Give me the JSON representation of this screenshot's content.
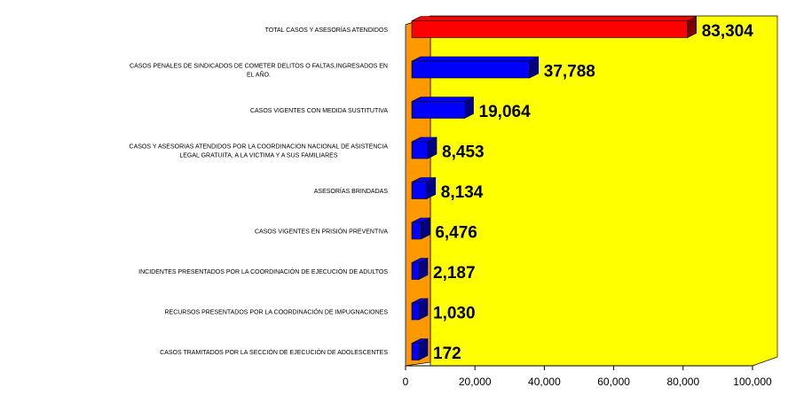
{
  "chart_data": {
    "type": "bar",
    "orientation": "horizontal",
    "three_d": true,
    "categories": [
      "TOTAL CASOS Y ASESORÍAS ATENDIDOS",
      "CASOS PENALES DE SINDICADOS DE COMETER DELITOS O FALTAS,INGRESADOS EN EL AÑO.",
      "CASOS VIGENTES CON MEDIDA SUSTITUTIVA",
      "CASOS Y ASESORIAS ATENDIDOS POR LA COORDINACION NACIONAL DE ASISTENCIA LEGAL GRATUITA, A LA VICTIMA Y A SUS FAMILIARES",
      "ASESORÍAS BRINDADAS",
      "CASOS VIGENTES EN PRISIÓN PREVENTIVA",
      "INCIDENTES PRESENTADOS POR LA COORDINACIÓN DE EJECUCIÓN DE ADULTOS",
      "RECURSOS PRESENTADOS POR LA COORDINACIÓN DE IMPUGNACIONES",
      "CASOS TRAMITADOS POR LA SECCIÓN DE EJECUCIÓN DE ADOLESCENTES"
    ],
    "category_lines": [
      [
        "TOTAL CASOS Y ASESORÍAS ATENDIDOS"
      ],
      [
        "CASOS PENALES DE SINDICADOS DE COMETER DELITOS O FALTAS,INGRESADOS EN",
        "EL AÑO."
      ],
      [
        "CASOS VIGENTES CON MEDIDA SUSTITUTIVA"
      ],
      [
        "CASOS Y ASESORIAS ATENDIDOS POR LA COORDINACION NACIONAL DE ASISTENCIA",
        "LEGAL GRATUITA, A LA VICTIMA Y A SUS FAMILIARES"
      ],
      [
        "ASESORÍAS BRINDADAS"
      ],
      [
        "CASOS VIGENTES EN PRISIÓN PREVENTIVA"
      ],
      [
        "INCIDENTES PRESENTADOS POR LA COORDINACIÓN DE EJECUCIÓN DE ADULTOS"
      ],
      [
        "RECURSOS PRESENTADOS POR LA COORDINACIÓN DE IMPUGNACIONES"
      ],
      [
        "CASOS TRAMITADOS POR LA SECCIÓN DE EJECUCIÓN DE ADOLESCENTES"
      ]
    ],
    "values": [
      83304,
      37788,
      19064,
      8453,
      8134,
      6476,
      2187,
      1030,
      172
    ],
    "value_labels": [
      "83,304",
      "37,788",
      "19,064",
      "8,453",
      "8,134",
      "6,476",
      "2,187",
      "1,030",
      "172"
    ],
    "bar_colors": [
      "#ff0000",
      "#0000ff",
      "#0000ff",
      "#0000ff",
      "#0000ff",
      "#0000ff",
      "#0000ff",
      "#0000ff",
      "#0000ff"
    ],
    "xlim": [
      0,
      100000
    ],
    "x_ticks": [
      "0",
      "20,000",
      "40,000",
      "60,000",
      "80,000",
      "100,000"
    ],
    "x_tick_values": [
      0,
      20000,
      40000,
      60000,
      80000,
      100000
    ],
    "grid": false,
    "colors": {
      "plot_background": "#ffff00",
      "side_wall": "#ff9900",
      "highlight_bar": "#ff0000",
      "bars": "#0000ff",
      "bar_edge": "#000080"
    }
  }
}
